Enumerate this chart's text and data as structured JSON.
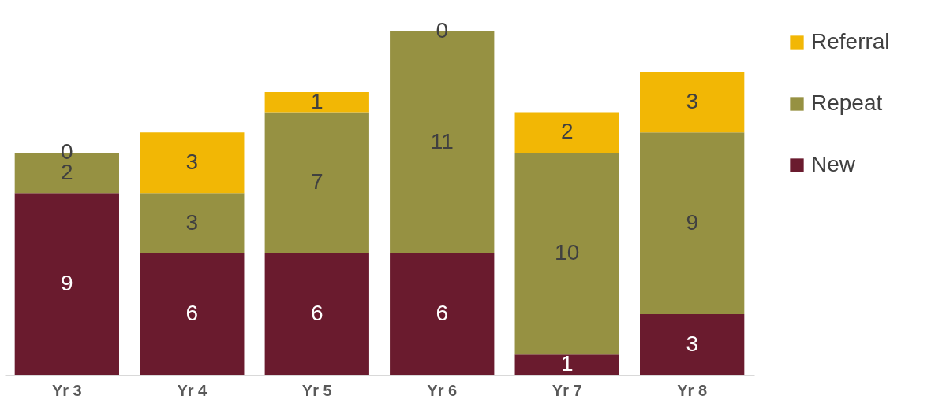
{
  "chart_data": {
    "type": "bar",
    "stacked": true,
    "data_labels": true,
    "legend": "right",
    "grid": false,
    "categories": [
      "Yr 3",
      "Yr 4",
      "Yr 5",
      "Yr 6",
      "Yr 7",
      "Yr 8"
    ],
    "series": [
      {
        "name": "New",
        "color": "#6a1b2e",
        "values": [
          9,
          6,
          6,
          6,
          1,
          3
        ]
      },
      {
        "name": "Repeat",
        "color": "#969142",
        "values": [
          2,
          3,
          7,
          11,
          10,
          9
        ]
      },
      {
        "name": "Referral",
        "color": "#f2b705",
        "values": [
          0,
          3,
          1,
          0,
          2,
          3
        ]
      }
    ]
  }
}
